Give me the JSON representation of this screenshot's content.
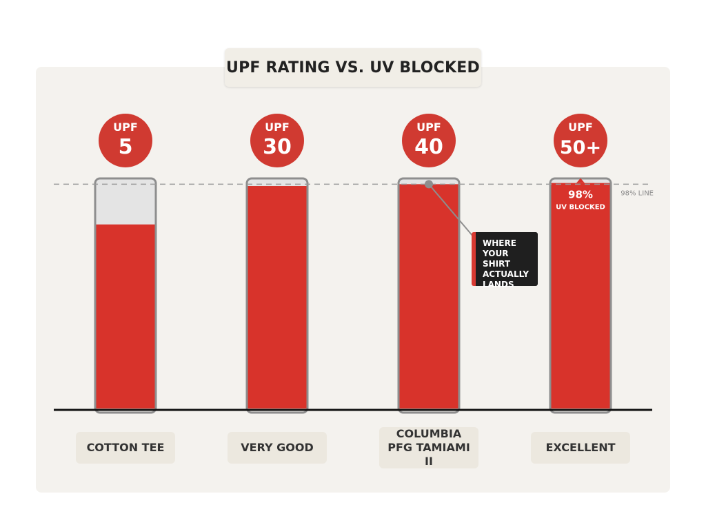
{
  "chart_data": {
    "type": "bar",
    "title": "UPF RATING VS. UV BLOCKED",
    "categories": [
      "COTTON TEE",
      "VERY GOOD",
      "COLUMBIA PFG TAMIAMI II",
      "EXCELLENT"
    ],
    "upf_badges": [
      {
        "top": "UPF",
        "bottom": "5"
      },
      {
        "top": "UPF",
        "bottom": "30"
      },
      {
        "top": "UPF",
        "bottom": "40"
      },
      {
        "top": "UPF",
        "bottom": "50+"
      }
    ],
    "values": [
      80,
      96.7,
      97.5,
      98
    ],
    "ylim": [
      0,
      100
    ],
    "y_unit": "% UV blocked",
    "reference_line": {
      "value": 97.5,
      "label": "98% LINE"
    },
    "data_labels": [
      {
        "index": 3,
        "value_text": "98%",
        "caption": "UV BLOCKED"
      }
    ],
    "annotation": {
      "index": 2,
      "text": "WHERE\nYOUR SHIRT\nACTUALLY\nLANDS"
    },
    "colors": {
      "bar_fill": "#d8332b",
      "bar_empty": "#e4e4e4",
      "bar_outline": "#8e8e8e",
      "badge": "#d03a31",
      "baseline": "#111111"
    }
  }
}
